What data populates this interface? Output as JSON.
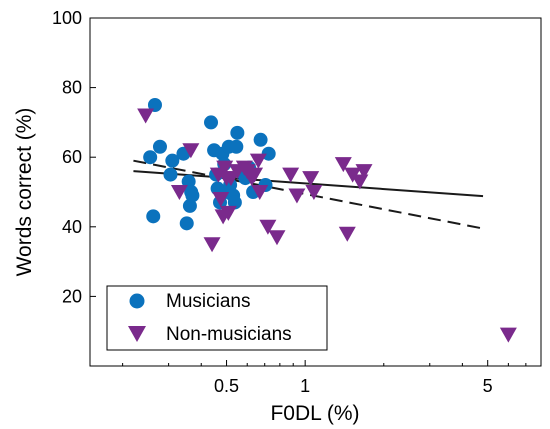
{
  "chart_data": {
    "type": "scatter",
    "title": "",
    "xlabel": "F0DL (%)",
    "ylabel": "Words correct (%)",
    "xscale": "log",
    "xlim": [
      0.15,
      8.0
    ],
    "ylim": [
      0,
      100
    ],
    "x_ticks": [
      {
        "value": 0.5,
        "label": "0.5"
      },
      {
        "value": 1,
        "label": "1"
      },
      {
        "value": 5,
        "label": "5"
      }
    ],
    "y_ticks": [
      {
        "value": 20,
        "label": "20"
      },
      {
        "value": 40,
        "label": "40"
      },
      {
        "value": 60,
        "label": "60"
      },
      {
        "value": 80,
        "label": "80"
      },
      {
        "value": 100,
        "label": "100"
      }
    ],
    "grid": false,
    "legend_position": "bottom-left",
    "colors": {
      "musicians": "#0b72bd",
      "non_musicians": "#7a2a8c",
      "fit": "#1a1a1a"
    },
    "series": [
      {
        "name": "Musicians",
        "marker": "circle",
        "color": "#0b72bd",
        "points": [
          [
            0.255,
            60
          ],
          [
            0.262,
            43
          ],
          [
            0.266,
            75
          ],
          [
            0.278,
            63
          ],
          [
            0.305,
            55
          ],
          [
            0.31,
            59
          ],
          [
            0.342,
            61
          ],
          [
            0.352,
            41
          ],
          [
            0.358,
            53
          ],
          [
            0.362,
            46
          ],
          [
            0.366,
            50
          ],
          [
            0.37,
            49
          ],
          [
            0.436,
            70
          ],
          [
            0.448,
            62
          ],
          [
            0.456,
            55
          ],
          [
            0.462,
            51
          ],
          [
            0.472,
            47
          ],
          [
            0.482,
            61
          ],
          [
            0.49,
            58
          ],
          [
            0.496,
            50
          ],
          [
            0.51,
            63
          ],
          [
            0.516,
            52
          ],
          [
            0.53,
            49
          ],
          [
            0.538,
            47
          ],
          [
            0.545,
            63
          ],
          [
            0.55,
            67
          ],
          [
            0.565,
            56
          ],
          [
            0.59,
            54
          ],
          [
            0.61,
            57
          ],
          [
            0.632,
            50
          ],
          [
            0.675,
            65
          ],
          [
            0.705,
            52
          ],
          [
            0.725,
            61
          ]
        ]
      },
      {
        "name": "Non-musicians",
        "marker": "triangle-down",
        "color": "#7a2a8c",
        "points": [
          [
            0.245,
            72
          ],
          [
            0.33,
            50
          ],
          [
            0.365,
            62
          ],
          [
            0.44,
            35
          ],
          [
            0.465,
            55
          ],
          [
            0.475,
            48
          ],
          [
            0.485,
            43
          ],
          [
            0.492,
            57
          ],
          [
            0.5,
            54
          ],
          [
            0.508,
            44
          ],
          [
            0.52,
            54
          ],
          [
            0.55,
            56
          ],
          [
            0.585,
            57
          ],
          [
            0.6,
            56
          ],
          [
            0.625,
            54
          ],
          [
            0.64,
            55
          ],
          [
            0.662,
            59
          ],
          [
            0.67,
            50
          ],
          [
            0.72,
            40
          ],
          [
            0.78,
            37
          ],
          [
            0.88,
            55
          ],
          [
            0.93,
            49
          ],
          [
            1.05,
            54
          ],
          [
            1.08,
            50
          ],
          [
            1.4,
            58
          ],
          [
            1.45,
            38
          ],
          [
            1.52,
            55
          ],
          [
            1.62,
            53
          ],
          [
            1.68,
            56
          ],
          [
            6.0,
            9
          ]
        ]
      }
    ],
    "fits": [
      {
        "style": "solid",
        "x": [
          0.22,
          4.8
        ],
        "y": [
          56,
          48.8
        ]
      },
      {
        "style": "dashed",
        "x": [
          0.22,
          4.8
        ],
        "y": [
          59,
          39.5
        ]
      }
    ],
    "legend": [
      {
        "label": "Musicians",
        "marker": "circle"
      },
      {
        "label": "Non-musicians",
        "marker": "triangle-down"
      }
    ]
  }
}
